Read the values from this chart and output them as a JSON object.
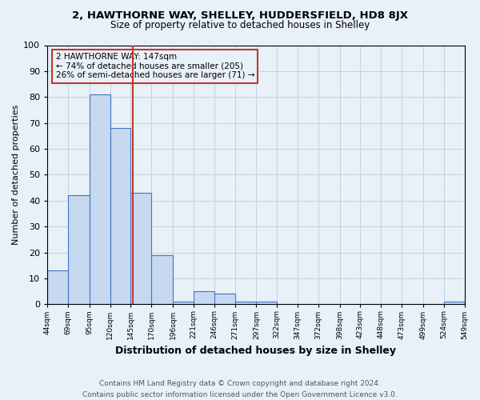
{
  "title_line1": "2, HAWTHORNE WAY, SHELLEY, HUDDERSFIELD, HD8 8JX",
  "title_line2": "Size of property relative to detached houses in Shelley",
  "xlabel": "Distribution of detached houses by size in Shelley",
  "ylabel": "Number of detached properties",
  "footnote": "Contains HM Land Registry data © Crown copyright and database right 2024.\nContains public sector information licensed under the Open Government Licence v3.0.",
  "annotation_line1": "2 HAWTHORNE WAY: 147sqm",
  "annotation_line2": "← 74% of detached houses are smaller (205)",
  "annotation_line3": "26% of semi-detached houses are larger (71) →",
  "bar_edges": [
    44,
    69,
    95,
    120,
    145,
    170,
    196,
    221,
    246,
    271,
    297,
    322,
    347,
    372,
    398,
    423,
    448,
    473,
    499,
    524,
    549
  ],
  "bar_heights": [
    13,
    42,
    81,
    68,
    43,
    19,
    1,
    5,
    4,
    1,
    1,
    0,
    0,
    0,
    0,
    0,
    0,
    0,
    0,
    1,
    1
  ],
  "property_size": 147,
  "bar_fill_color": "#c6d9f1",
  "bar_edge_color": "#4472c4",
  "vline_color": "#c0392b",
  "annotation_box_edge": "#c0392b",
  "grid_color": "#b8cfe0",
  "bg_color": "#e8f0f8",
  "ylim": [
    0,
    100
  ],
  "yticks": [
    0,
    10,
    20,
    30,
    40,
    50,
    60,
    70,
    80,
    90,
    100
  ],
  "title1_fontsize": 9.5,
  "title2_fontsize": 8.5,
  "footnote_fontsize": 6.5,
  "xlabel_fontsize": 9,
  "ylabel_fontsize": 8,
  "xtick_fontsize": 6.5,
  "ytick_fontsize": 8
}
